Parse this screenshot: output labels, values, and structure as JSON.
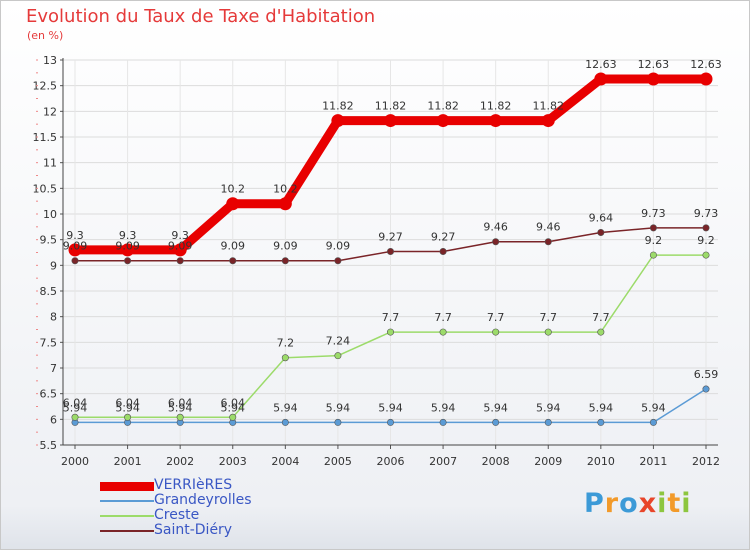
{
  "chart_data": {
    "type": "line",
    "title": "Evolution du Taux de Taxe d'Habitation",
    "subtitle": "(en %)",
    "x": [
      "2000",
      "2001",
      "2002",
      "2003",
      "2004",
      "2005",
      "2006",
      "2007",
      "2008",
      "2009",
      "2010",
      "2011",
      "2012"
    ],
    "ylim": [
      5.5,
      13
    ],
    "yticks": [
      "5.5",
      "6",
      "6.5",
      "7",
      "7.5",
      "8",
      "8.5",
      "9",
      "9.5",
      "10",
      "10.5",
      "11",
      "11.5",
      "12",
      "12.5",
      "13"
    ],
    "legend_position": "bottom-left",
    "series": [
      {
        "name": "VERRIèRES",
        "color": "#e80000",
        "values": [
          9.3,
          9.3,
          9.3,
          10.2,
          10.2,
          11.82,
          11.82,
          11.82,
          11.82,
          11.82,
          12.63,
          12.63,
          12.63
        ],
        "labels": [
          "9.3",
          "9.3",
          "9.3",
          "10.2",
          "10.2",
          "11.82",
          "11.82",
          "11.82",
          "11.82",
          "11.82",
          "12.63",
          "12.63",
          "12.63"
        ]
      },
      {
        "name": "Grandeyrolles",
        "color": "#5b9bd5",
        "values": [
          5.94,
          5.94,
          5.94,
          5.94,
          5.94,
          5.94,
          5.94,
          5.94,
          5.94,
          5.94,
          5.94,
          5.94,
          6.59
        ],
        "labels": [
          "5.94",
          "5.94",
          "5.94",
          "5.94",
          "5.94",
          "5.94",
          "5.94",
          "5.94",
          "5.94",
          "5.94",
          "5.94",
          "5.94",
          "6.59"
        ]
      },
      {
        "name": "Creste",
        "color": "#9cdb6a",
        "values": [
          6.04,
          6.04,
          6.04,
          6.04,
          7.2,
          7.24,
          7.7,
          7.7,
          7.7,
          7.7,
          7.7,
          9.2,
          9.2
        ],
        "labels": [
          "6.04",
          "6.04",
          "6.04",
          "6.04",
          "7.2",
          "7.24",
          "7.7",
          "7.7",
          "7.7",
          "7.7",
          "7.7",
          "9.2",
          "9.2"
        ]
      },
      {
        "name": "Saint-Diéry",
        "color": "#7a2428",
        "values": [
          9.09,
          9.09,
          9.09,
          9.09,
          9.09,
          9.09,
          9.27,
          9.27,
          9.46,
          9.46,
          9.64,
          9.73,
          9.73
        ],
        "labels": [
          "9.09",
          "9.09",
          "9.09",
          "9.09",
          "9.09",
          "9.09",
          "9.27",
          "9.27",
          "9.46",
          "9.46",
          "9.64",
          "9.73",
          "9.73"
        ]
      }
    ]
  },
  "brand": {
    "letters": [
      "P",
      "r",
      "o",
      "x",
      "i",
      "t",
      "i"
    ],
    "colors": [
      "#3c9ad7",
      "#f29a2a",
      "#3c9ad7",
      "#e8452a",
      "#8dc63f",
      "#f29a2a",
      "#8dc63f"
    ]
  }
}
